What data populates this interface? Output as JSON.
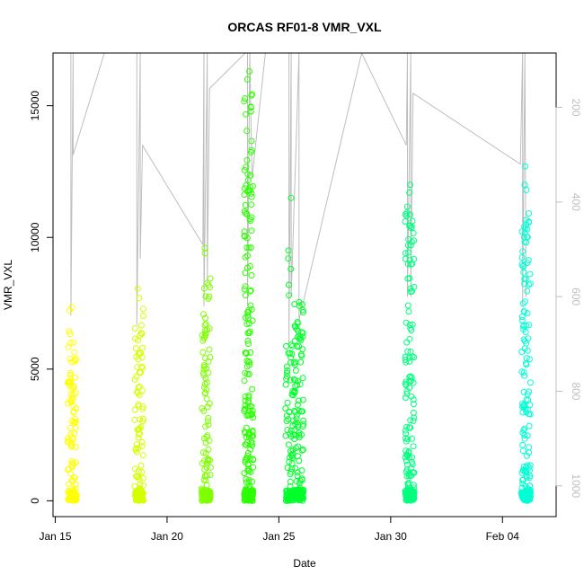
{
  "chart_data": {
    "type": "scatter",
    "title": "ORCAS RF01-8 VMR_VXL",
    "xlabel": "Date",
    "ylabel": "VMR_VXL",
    "x_ticks": [
      "Jan 15",
      "Jan 20",
      "Jan 25",
      "Jan 30",
      "Feb 04"
    ],
    "x_tick_days": [
      15,
      20,
      25,
      30,
      35
    ],
    "xlim_days": [
      14.9,
      37.4
    ],
    "y_ticks": [
      0,
      5000,
      10000,
      15000
    ],
    "ylim": [
      -600,
      17000
    ],
    "y2_ticks": [
      200,
      400,
      600,
      800,
      1000
    ],
    "y2lim": [
      1065,
      85
    ],
    "y2_reversed": true,
    "series": [
      {
        "day": 15.75,
        "ymax": 7400,
        "outliers": [],
        "color": "#FFFF00"
      },
      {
        "day": 18.75,
        "ymax": 7400,
        "outliers": [
          8050,
          7700
        ],
        "color": "#D4FF00"
      },
      {
        "day": 21.75,
        "ymax": 8800,
        "outliers": [
          9600,
          9400
        ],
        "color": "#7FFF00"
      },
      {
        "day": 23.65,
        "ymax": 15500,
        "outliers": [
          16300,
          16000
        ],
        "color": "#2AFF00"
      },
      {
        "day": 25.5,
        "ymax": 6000,
        "outliers": [
          11500,
          9500,
          9200,
          8800,
          8200,
          7800
        ],
        "color": "#00FF2A"
      },
      {
        "day": 25.9,
        "ymax": 7700,
        "outliers": [],
        "color": "#00FF2A"
      },
      {
        "day": 30.85,
        "ymax": 11300,
        "outliers": [
          12000,
          11700
        ],
        "color": "#00FF7F"
      },
      {
        "day": 36.05,
        "ymax": 11000,
        "outliers": [
          12700,
          12000,
          11800
        ],
        "color": "#00FFD4"
      }
    ],
    "pressure_trace": {
      "color": "#bebebe",
      "points": [
        [
          15.7,
          85
        ],
        [
          15.7,
          640
        ],
        [
          15.8,
          85
        ],
        [
          15.8,
          300
        ],
        [
          17.2,
          85
        ],
        [
          18.65,
          85
        ],
        [
          18.65,
          660
        ],
        [
          18.8,
          85
        ],
        [
          18.8,
          520
        ],
        [
          18.9,
          280
        ],
        [
          21.6,
          490
        ],
        [
          21.65,
          85
        ],
        [
          21.65,
          620
        ],
        [
          21.8,
          85
        ],
        [
          21.8,
          570
        ],
        [
          21.9,
          160
        ],
        [
          23.5,
          85
        ],
        [
          23.6,
          85
        ],
        [
          23.6,
          620
        ],
        [
          23.7,
          85
        ],
        [
          23.8,
          350
        ],
        [
          24.4,
          85
        ],
        [
          25.45,
          85
        ],
        [
          25.45,
          700
        ],
        [
          25.55,
          85
        ],
        [
          25.55,
          600
        ],
        [
          25.9,
          85
        ],
        [
          25.9,
          650
        ],
        [
          28.7,
          85
        ],
        [
          30.7,
          280
        ],
        [
          30.75,
          85
        ],
        [
          30.75,
          600
        ],
        [
          30.9,
          85
        ],
        [
          30.9,
          600
        ],
        [
          31.0,
          170
        ],
        [
          35.8,
          320
        ],
        [
          35.9,
          85
        ],
        [
          35.9,
          620
        ],
        [
          36.0,
          85
        ],
        [
          36.05,
          600
        ]
      ]
    }
  }
}
